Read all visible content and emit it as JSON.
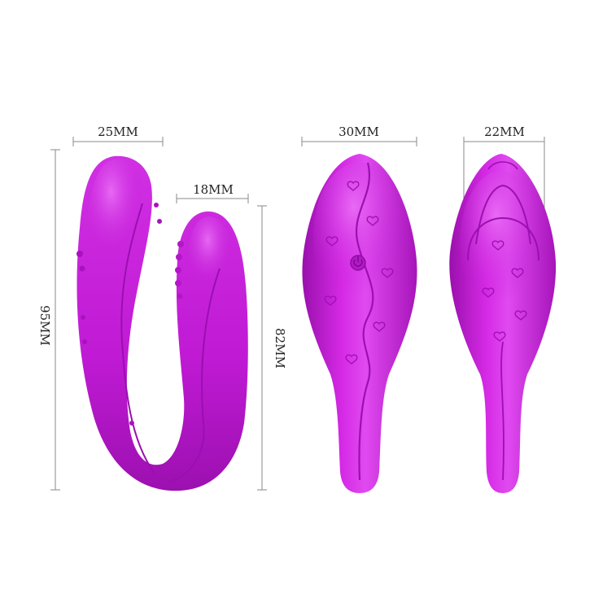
{
  "colors": {
    "silicone_main": "#c21bd6",
    "silicone_light": "#e25af0",
    "silicone_dark": "#8f0fa2",
    "dimension_line": "#8a8a8a",
    "text": "#222222"
  },
  "dimensions": {
    "left_width": "25MM",
    "tip_width": "18MM",
    "total_height": "95MM",
    "tip_height": "82MM",
    "front_width": "30MM",
    "side_width": "22MM"
  }
}
